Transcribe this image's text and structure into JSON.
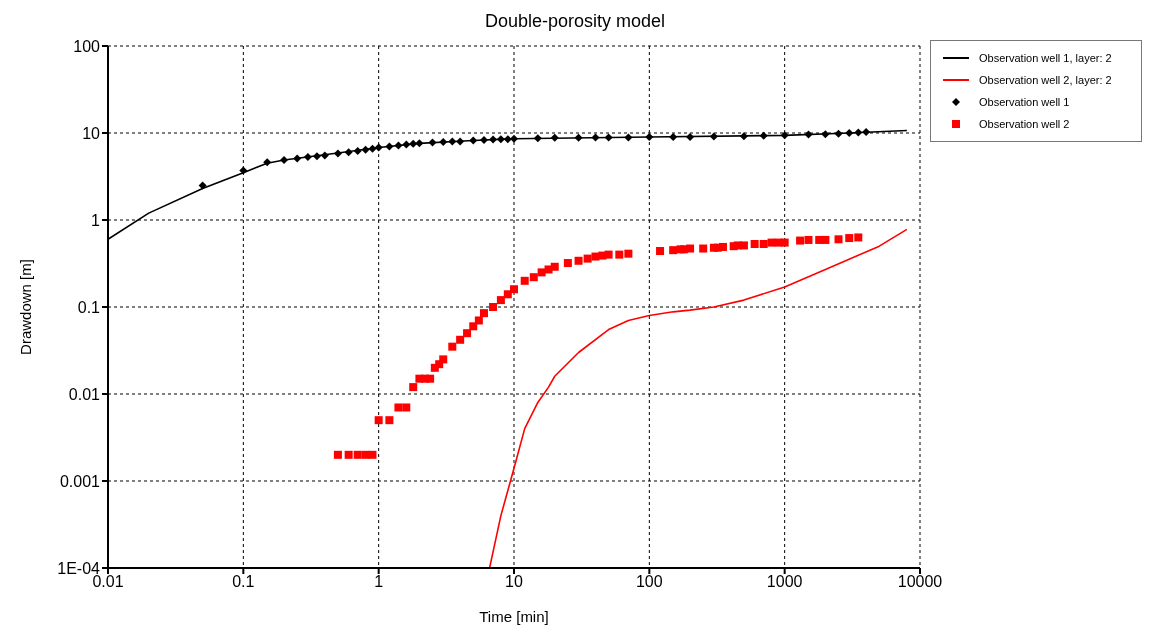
{
  "chart_data": {
    "type": "line",
    "title": "Double-porosity model",
    "xlabel": "Time [min]",
    "ylabel": "Drawdown [m]",
    "log": "xy",
    "grid": true,
    "legend": "top right",
    "line_style": "solid",
    "xlim": [
      0.01,
      10000
    ],
    "xticks": [
      0.01,
      0.1,
      1,
      10,
      100,
      1000,
      10000
    ],
    "ylim": [
      0.0001,
      100
    ],
    "yticks": [
      {
        "value": 0.0001,
        "label": "1E-04"
      },
      0.001,
      0.01,
      0.1,
      1,
      10,
      100
    ],
    "series": [
      {
        "name": "Observation well 1, layer: 2",
        "marker": "none",
        "color": "#000000",
        "x": [
          0.01,
          0.02,
          0.05,
          0.1,
          0.15,
          0.2,
          0.5,
          1,
          2,
          5,
          10,
          100,
          1000,
          3000,
          8000
        ],
        "values": [
          0.6,
          1.2,
          2.3,
          3.5,
          4.5,
          4.9,
          5.9,
          6.8,
          7.6,
          8.2,
          8.6,
          9.0,
          9.4,
          10.0,
          10.7
        ]
      },
      {
        "name": "Observation well 2, layer: 2",
        "marker": "none",
        "color": "#ff0000",
        "x": [
          6.6,
          8,
          10,
          12,
          15,
          18,
          20,
          30,
          50,
          70,
          100,
          150,
          200,
          300,
          500,
          1000,
          2000,
          5000,
          8000
        ],
        "values": [
          0.0001,
          0.0004,
          0.0014,
          0.004,
          0.008,
          0.012,
          0.016,
          0.03,
          0.055,
          0.07,
          0.08,
          0.088,
          0.092,
          0.1,
          0.12,
          0.17,
          0.27,
          0.5,
          0.78
        ]
      },
      {
        "name": "Observation well 1",
        "type": "scatter",
        "marker": "diamond",
        "color": "#000000",
        "x": [
          0.05,
          0.1,
          0.15,
          0.2,
          0.25,
          0.3,
          0.35,
          0.4,
          0.5,
          0.6,
          0.7,
          0.8,
          0.9,
          1,
          1.2,
          1.4,
          1.6,
          1.8,
          2,
          2.5,
          3,
          3.5,
          4,
          5,
          6,
          7,
          8,
          9,
          10,
          15,
          20,
          30,
          40,
          50,
          70,
          100,
          150,
          200,
          300,
          500,
          700,
          1000,
          1500,
          2000,
          2500,
          3000,
          3500,
          4000
        ],
        "values": [
          2.5,
          3.7,
          4.6,
          4.9,
          5.1,
          5.3,
          5.4,
          5.5,
          5.8,
          6.0,
          6.2,
          6.4,
          6.6,
          6.8,
          7.0,
          7.2,
          7.4,
          7.5,
          7.6,
          7.8,
          7.9,
          8.0,
          8.0,
          8.2,
          8.3,
          8.4,
          8.5,
          8.5,
          8.6,
          8.7,
          8.8,
          8.8,
          8.9,
          8.9,
          8.9,
          9.0,
          9.0,
          9.0,
          9.1,
          9.2,
          9.3,
          9.4,
          9.6,
          9.7,
          9.8,
          10.0,
          10.1,
          10.3
        ]
      },
      {
        "name": "Observation well 2",
        "type": "scatter",
        "marker": "square",
        "color": "#ff0000",
        "x": [
          0.5,
          0.6,
          0.7,
          0.8,
          0.9,
          1.0,
          1.2,
          1.4,
          1.6,
          1.8,
          2.0,
          2.2,
          2.4,
          2.6,
          2.8,
          3.0,
          3.5,
          4,
          4.5,
          5,
          5.5,
          6,
          7,
          8,
          9,
          10,
          12,
          14,
          16,
          18,
          20,
          25,
          30,
          35,
          40,
          45,
          50,
          60,
          70,
          120,
          150,
          170,
          180,
          200,
          250,
          300,
          320,
          350,
          420,
          450,
          500,
          600,
          700,
          800,
          900,
          1000,
          1300,
          1500,
          1800,
          2000,
          2500,
          3000,
          3500
        ],
        "values": [
          0.002,
          0.002,
          0.002,
          0.002,
          0.002,
          0.005,
          0.005,
          0.007,
          0.007,
          0.012,
          0.015,
          0.015,
          0.015,
          0.02,
          0.022,
          0.025,
          0.035,
          0.042,
          0.05,
          0.06,
          0.07,
          0.085,
          0.1,
          0.12,
          0.14,
          0.16,
          0.2,
          0.22,
          0.25,
          0.27,
          0.29,
          0.32,
          0.34,
          0.36,
          0.38,
          0.39,
          0.4,
          0.4,
          0.41,
          0.44,
          0.45,
          0.46,
          0.46,
          0.47,
          0.47,
          0.48,
          0.48,
          0.49,
          0.5,
          0.51,
          0.51,
          0.53,
          0.53,
          0.55,
          0.55,
          0.55,
          0.58,
          0.59,
          0.59,
          0.59,
          0.6,
          0.62,
          0.63
        ]
      }
    ]
  }
}
